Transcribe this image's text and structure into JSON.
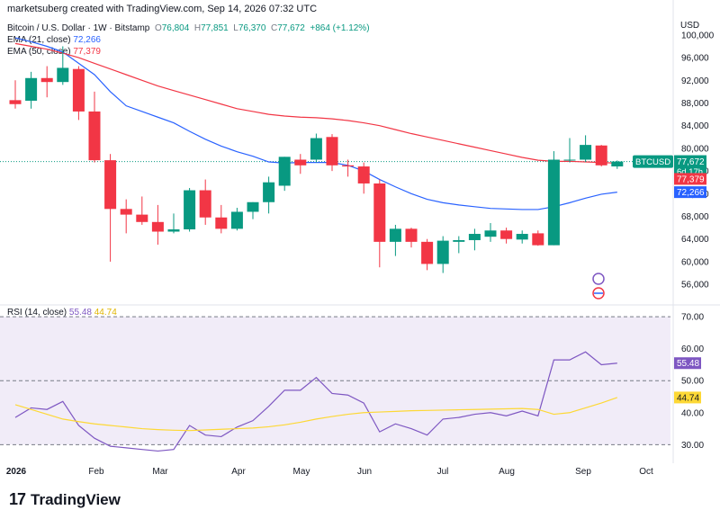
{
  "header": {
    "attribution": "marketsuberg created with TradingView.com, Sep 14, 2026 07:32 UTC",
    "symbol_line": "Bitcoin / U.S. Dollar · 1W · Bitstamp",
    "ohlc": {
      "o_label": "O",
      "o": "76,804",
      "h_label": "H",
      "h": "77,851",
      "l_label": "L",
      "l": "76,370",
      "c_label": "C",
      "c": "77,672",
      "change": "+864 (+1.12%)"
    },
    "ema21_label": "EMA (21, close)",
    "ema21_value": "72,266",
    "ema50_label": "EMA (50, close)",
    "ema50_value": "77,379",
    "rsi_label": "RSI (14, close)",
    "rsi_value": "55.48",
    "rsi_ma_value": "44.74"
  },
  "footer": {
    "brand": "TradingView",
    "logo_glyph": "17"
  },
  "colors": {
    "up": "#089981",
    "down": "#f23645",
    "ema21": "#2962ff",
    "ema50": "#f23645",
    "rsi": "#7e57c2",
    "rsi_ma": "#fdd835",
    "rsi_band": "#ede7f6"
  },
  "chart_data": [
    {
      "type": "candlestick",
      "title": "Bitcoin / U.S. Dollar · 1W · Bitstamp",
      "currency_label": "USD",
      "ylim": [
        53000,
        103000
      ],
      "y_ticks": [
        100000,
        96000,
        92000,
        88000,
        84000,
        80000,
        76000,
        72000,
        68000,
        64000,
        60000,
        56000
      ],
      "y_tick_labels": [
        "100,000",
        "96,000",
        "92,000",
        "88,000",
        "84,000",
        "80,000",
        "76,000",
        "72,000",
        "68,000",
        "64,000",
        "60,000",
        "56,000"
      ],
      "x_labels": [
        "2026",
        "Feb",
        "Mar",
        "Apr",
        "May",
        "Jun",
        "Jul",
        "Aug",
        "Sep",
        "Oct"
      ],
      "candles": [
        {
          "o": 88500,
          "h": 92000,
          "l": 87000,
          "c": 87800
        },
        {
          "o": 88400,
          "h": 93500,
          "l": 87000,
          "c": 92400
        },
        {
          "o": 92400,
          "h": 94500,
          "l": 89000,
          "c": 91700
        },
        {
          "o": 91700,
          "h": 98000,
          "l": 91200,
          "c": 94200
        },
        {
          "o": 94000,
          "h": 94500,
          "l": 85000,
          "c": 86500
        },
        {
          "o": 86500,
          "h": 90000,
          "l": 77500,
          "c": 77900
        },
        {
          "o": 77900,
          "h": 79000,
          "l": 60000,
          "c": 69300
        },
        {
          "o": 69300,
          "h": 71000,
          "l": 65000,
          "c": 68300
        },
        {
          "o": 68300,
          "h": 71500,
          "l": 66500,
          "c": 67000
        },
        {
          "o": 67000,
          "h": 70000,
          "l": 63000,
          "c": 65300
        },
        {
          "o": 65300,
          "h": 68500,
          "l": 65000,
          "c": 65700
        },
        {
          "o": 65700,
          "h": 73000,
          "l": 65300,
          "c": 72600
        },
        {
          "o": 72600,
          "h": 74500,
          "l": 66500,
          "c": 67800
        },
        {
          "o": 67800,
          "h": 70000,
          "l": 65000,
          "c": 65800
        },
        {
          "o": 65800,
          "h": 69500,
          "l": 65500,
          "c": 68800
        },
        {
          "o": 68800,
          "h": 70500,
          "l": 67500,
          "c": 70500
        },
        {
          "o": 70500,
          "h": 75000,
          "l": 68500,
          "c": 74000
        },
        {
          "o": 73400,
          "h": 78500,
          "l": 72500,
          "c": 78500
        },
        {
          "o": 78000,
          "h": 79000,
          "l": 75500,
          "c": 77000
        },
        {
          "o": 78000,
          "h": 82600,
          "l": 77500,
          "c": 81800
        },
        {
          "o": 82000,
          "h": 82500,
          "l": 76000,
          "c": 77000
        },
        {
          "o": 77000,
          "h": 78000,
          "l": 75000,
          "c": 76800
        },
        {
          "o": 76800,
          "h": 77500,
          "l": 72000,
          "c": 73800
        },
        {
          "o": 73800,
          "h": 74500,
          "l": 59000,
          "c": 63500
        },
        {
          "o": 63500,
          "h": 66500,
          "l": 61000,
          "c": 65800
        },
        {
          "o": 65800,
          "h": 66000,
          "l": 62500,
          "c": 63500
        },
        {
          "o": 63500,
          "h": 64000,
          "l": 58500,
          "c": 59600
        },
        {
          "o": 59600,
          "h": 64500,
          "l": 58000,
          "c": 63700
        },
        {
          "o": 63500,
          "h": 64500,
          "l": 61500,
          "c": 63800
        },
        {
          "o": 63800,
          "h": 65800,
          "l": 62000,
          "c": 64900
        },
        {
          "o": 64400,
          "h": 66800,
          "l": 63500,
          "c": 65500
        },
        {
          "o": 65500,
          "h": 66000,
          "l": 63200,
          "c": 64000
        },
        {
          "o": 63900,
          "h": 65500,
          "l": 63200,
          "c": 64900
        },
        {
          "o": 65000,
          "h": 65500,
          "l": 62800,
          "c": 62900
        },
        {
          "o": 62900,
          "h": 79500,
          "l": 62900,
          "c": 78000
        },
        {
          "o": 78000,
          "h": 81800,
          "l": 77500,
          "c": 78000
        },
        {
          "o": 78000,
          "h": 82300,
          "l": 77600,
          "c": 80600
        },
        {
          "o": 80500,
          "h": 80600,
          "l": 76800,
          "c": 77000
        },
        {
          "o": 76804,
          "h": 77851,
          "l": 76370,
          "c": 77672
        }
      ],
      "series": [
        {
          "name": "EMA (21, close)",
          "values": [
            99500,
            98800,
            98000,
            97000,
            95000,
            93000,
            90000,
            87500,
            86500,
            85500,
            84500,
            83000,
            81600,
            80400,
            79400,
            78600,
            77600,
            77400,
            77500,
            77500,
            77500,
            77000,
            76000,
            74500,
            73200,
            72000,
            71000,
            70400,
            70000,
            69700,
            69400,
            69300,
            69200,
            69200,
            69700,
            70400,
            71200,
            71900,
            72266
          ]
        },
        {
          "name": "EMA (50, close)",
          "values": [
            98500,
            98000,
            97500,
            96800,
            96000,
            95000,
            94000,
            93000,
            92000,
            91000,
            90200,
            89400,
            88600,
            87800,
            87000,
            86500,
            86000,
            85700,
            85500,
            85400,
            85200,
            84900,
            84500,
            84000,
            83300,
            82600,
            82000,
            81400,
            80800,
            80200,
            79600,
            79000,
            78400,
            77900,
            77700,
            77700,
            77600,
            77500,
            77379
          ]
        }
      ],
      "last_price_tag": {
        "symbol": "BTCUSD",
        "price": "77,672",
        "countdown": "6d 17h"
      },
      "price_tags": [
        "77,379",
        "72,266"
      ]
    },
    {
      "type": "line",
      "title": "RSI (14, close)",
      "ylim": [
        27,
        72
      ],
      "y_ticks": [
        70,
        60,
        50,
        40,
        30
      ],
      "y_tick_labels": [
        "70.00",
        "60.00",
        "50.00",
        "40.00",
        "30.00"
      ],
      "band": [
        30,
        70
      ],
      "series": [
        {
          "name": "RSI",
          "values": [
            38.5,
            41.5,
            41,
            43.5,
            36,
            32,
            29.5,
            29,
            28.5,
            28,
            28.5,
            36,
            33,
            32.5,
            35.5,
            37.5,
            42,
            47,
            47,
            51,
            46,
            45.5,
            43,
            34,
            36.5,
            35,
            33,
            38,
            38.5,
            39.5,
            40,
            39,
            40.5,
            39,
            56.5,
            56.5,
            59,
            55,
            55.48
          ]
        },
        {
          "name": "RSI-based MA",
          "values": [
            42.5,
            41,
            39.5,
            38,
            37.2,
            36.5,
            36,
            35.5,
            35,
            34.7,
            34.5,
            34.4,
            34.6,
            34.8,
            35,
            35.2,
            35.6,
            36.2,
            37,
            38,
            38.8,
            39.5,
            40,
            40.2,
            40.4,
            40.6,
            40.7,
            40.8,
            40.9,
            41,
            41.1,
            41.2,
            41.3,
            41,
            39.5,
            40,
            41.5,
            43,
            44.74
          ]
        }
      ],
      "value_tags": [
        "55.48",
        "44.74"
      ]
    }
  ]
}
